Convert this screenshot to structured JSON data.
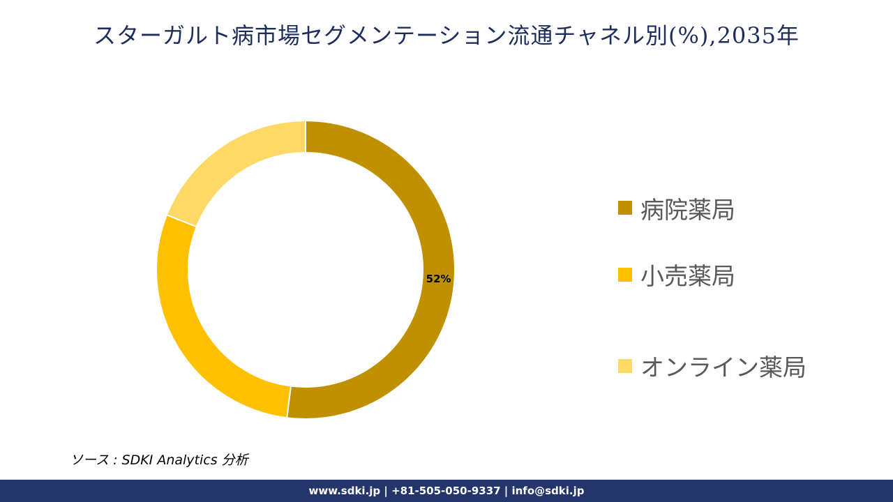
{
  "title": "スターガルト病市場セグメンテーション流通チャネル別(%),2035年",
  "chart_data": {
    "type": "pie",
    "categories": [
      "病院薬局",
      "小売薬局",
      "オンライン薬局"
    ],
    "values": [
      52,
      29,
      19
    ],
    "colors": [
      "#bf9000",
      "#ffc000",
      "#ffd966"
    ],
    "data_labels": [
      "52%",
      "",
      ""
    ],
    "legend_position": "right",
    "donut": true
  },
  "legend": [
    {
      "label": "病院薬局",
      "color": "#bf9000"
    },
    {
      "label": "小売薬局",
      "color": "#ffc000"
    },
    {
      "label": "オンライン薬局",
      "color": "#ffd966"
    }
  ],
  "source": "ソース : SDKI Analytics 分析",
  "footer": "www.sdki.jp | +81-505-050-9337 | info@sdki.jp"
}
